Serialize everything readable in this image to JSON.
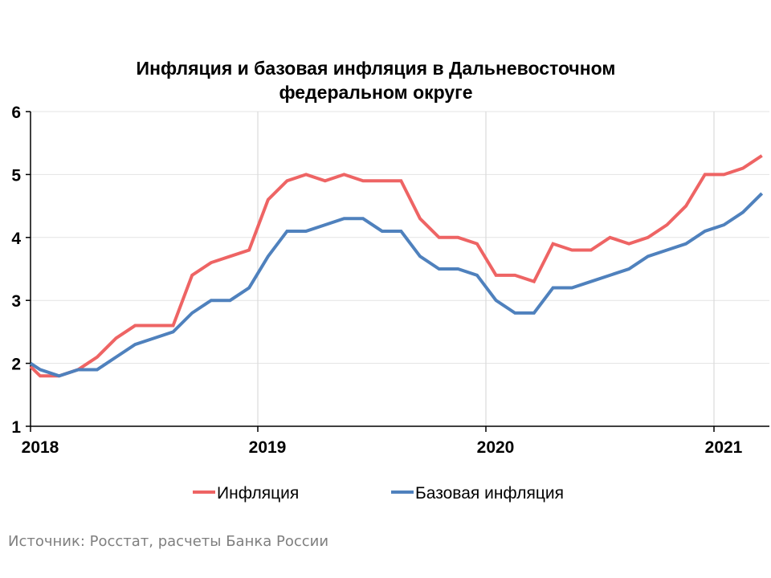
{
  "chart_data": {
    "type": "line",
    "title_line1": "Инфляция и базовая инфляция в Дальневосточном",
    "title_line2": "федеральном округе",
    "xlabel": "",
    "ylabel": "",
    "ylim": [
      1,
      6
    ],
    "yticks": [
      "1",
      "2",
      "3",
      "4",
      "5",
      "6"
    ],
    "xticks": [
      "2018",
      "2019",
      "2020",
      "2021"
    ],
    "grid": true,
    "legend_position": "bottom",
    "x_note": "monthly points; first value is the clipped segment at the axis edge, then Jan 2018 – Mar 2021",
    "series": [
      {
        "name": "Инфляция",
        "color": "#EE6464",
        "values": [
          1.95,
          1.8,
          1.8,
          1.9,
          2.1,
          2.4,
          2.6,
          2.6,
          2.6,
          3.4,
          3.6,
          3.7,
          3.8,
          4.6,
          4.9,
          5.0,
          4.9,
          5.0,
          4.9,
          4.9,
          4.9,
          4.3,
          4.0,
          4.0,
          3.9,
          3.4,
          3.4,
          3.3,
          3.9,
          3.8,
          3.8,
          4.0,
          3.9,
          4.0,
          4.2,
          4.5,
          5.0,
          5.0,
          5.1,
          5.3
        ]
      },
      {
        "name": "Базовая инфляция",
        "color": "#4F81BD",
        "values": [
          2.0,
          1.9,
          1.8,
          1.9,
          1.9,
          2.1,
          2.3,
          2.4,
          2.5,
          2.8,
          3.0,
          3.0,
          3.2,
          3.7,
          4.1,
          4.1,
          4.2,
          4.3,
          4.3,
          4.1,
          4.1,
          3.7,
          3.5,
          3.5,
          3.4,
          3.0,
          2.8,
          2.8,
          3.2,
          3.2,
          3.3,
          3.4,
          3.5,
          3.7,
          3.8,
          3.9,
          4.1,
          4.2,
          4.4,
          4.7
        ]
      }
    ]
  },
  "source": "Источник: Росстат, расчеты Банка России"
}
